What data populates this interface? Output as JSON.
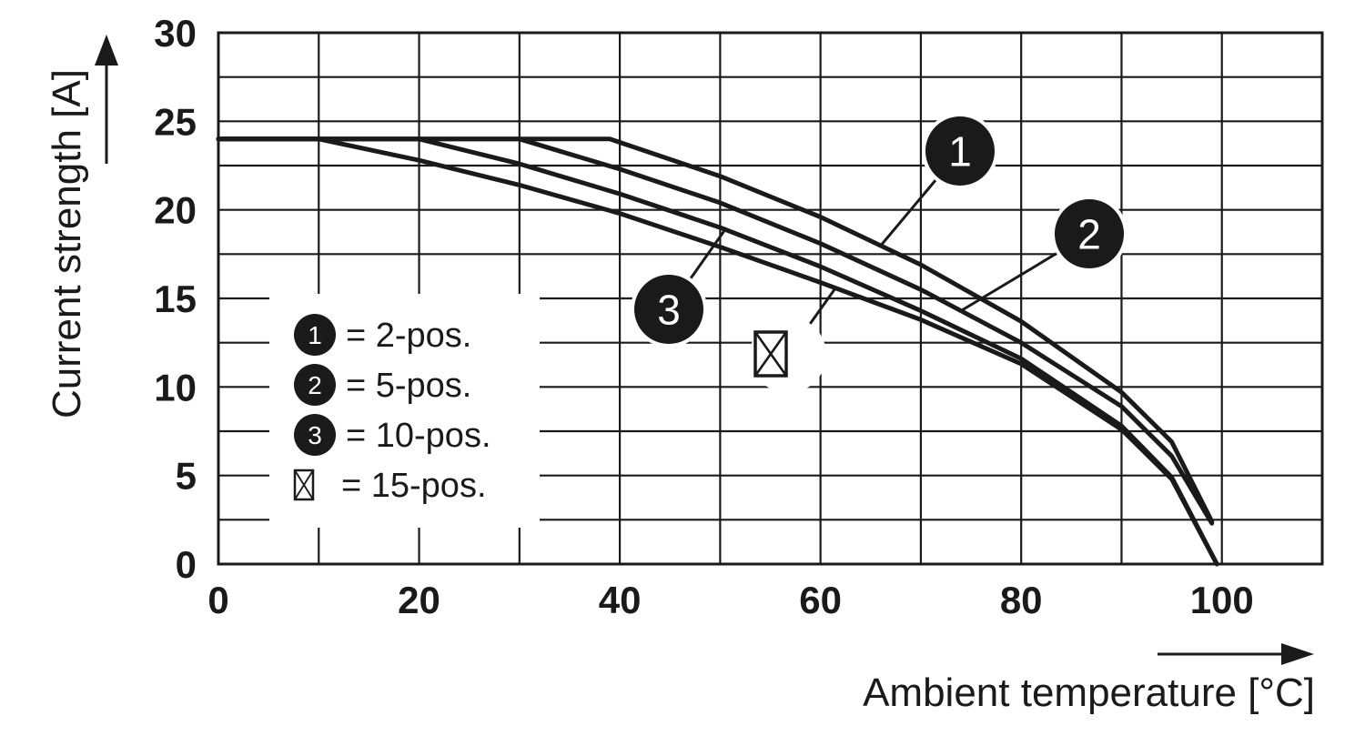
{
  "chart_data": {
    "type": "line",
    "xlabel": "Ambient temperature [°C]",
    "ylabel": "Current strength [A]",
    "xlim": [
      0,
      110
    ],
    "ylim": [
      0,
      30
    ],
    "x_ticks": [
      0,
      20,
      40,
      60,
      80,
      100
    ],
    "y_ticks": [
      0,
      5,
      10,
      15,
      20,
      25,
      30
    ],
    "grid": true,
    "legend_position": "left-center",
    "legend": [
      {
        "symbol": "1",
        "symbol_type": "filled-circle",
        "text": "= 2-pos."
      },
      {
        "symbol": "2",
        "symbol_type": "filled-circle",
        "text": "= 5-pos."
      },
      {
        "symbol": "3",
        "symbol_type": "filled-circle",
        "text": "= 10-pos."
      },
      {
        "symbol": "⊠",
        "symbol_type": "boxed-x",
        "text": "= 15-pos."
      }
    ],
    "series": [
      {
        "name": "1",
        "x": [
          0,
          39,
          50,
          60,
          70,
          80,
          90,
          95,
          99
        ],
        "y": [
          24,
          24,
          21.9,
          19.6,
          16.9,
          13.7,
          9.7,
          6.9,
          2.4
        ]
      },
      {
        "name": "2",
        "x": [
          0,
          30,
          40,
          50,
          60,
          70,
          80,
          90,
          95,
          99
        ],
        "y": [
          24,
          24,
          22.3,
          20.4,
          18.1,
          15.5,
          12.5,
          8.9,
          6.1,
          2.3
        ]
      },
      {
        "name": "3",
        "x": [
          0,
          20,
          30,
          40,
          50,
          60,
          70,
          80,
          90,
          95,
          99.5
        ],
        "y": [
          24,
          24,
          22.6,
          20.9,
          19.0,
          16.8,
          14.3,
          11.6,
          7.8,
          4.9,
          0
        ]
      },
      {
        "name": "⊠",
        "x": [
          0,
          10,
          20,
          30,
          40,
          50,
          60,
          70,
          80,
          90,
          95,
          99.5
        ],
        "y": [
          24,
          24,
          22.8,
          21.4,
          19.8,
          17.9,
          15.9,
          13.8,
          11.3,
          7.6,
          4.8,
          0
        ]
      }
    ]
  }
}
